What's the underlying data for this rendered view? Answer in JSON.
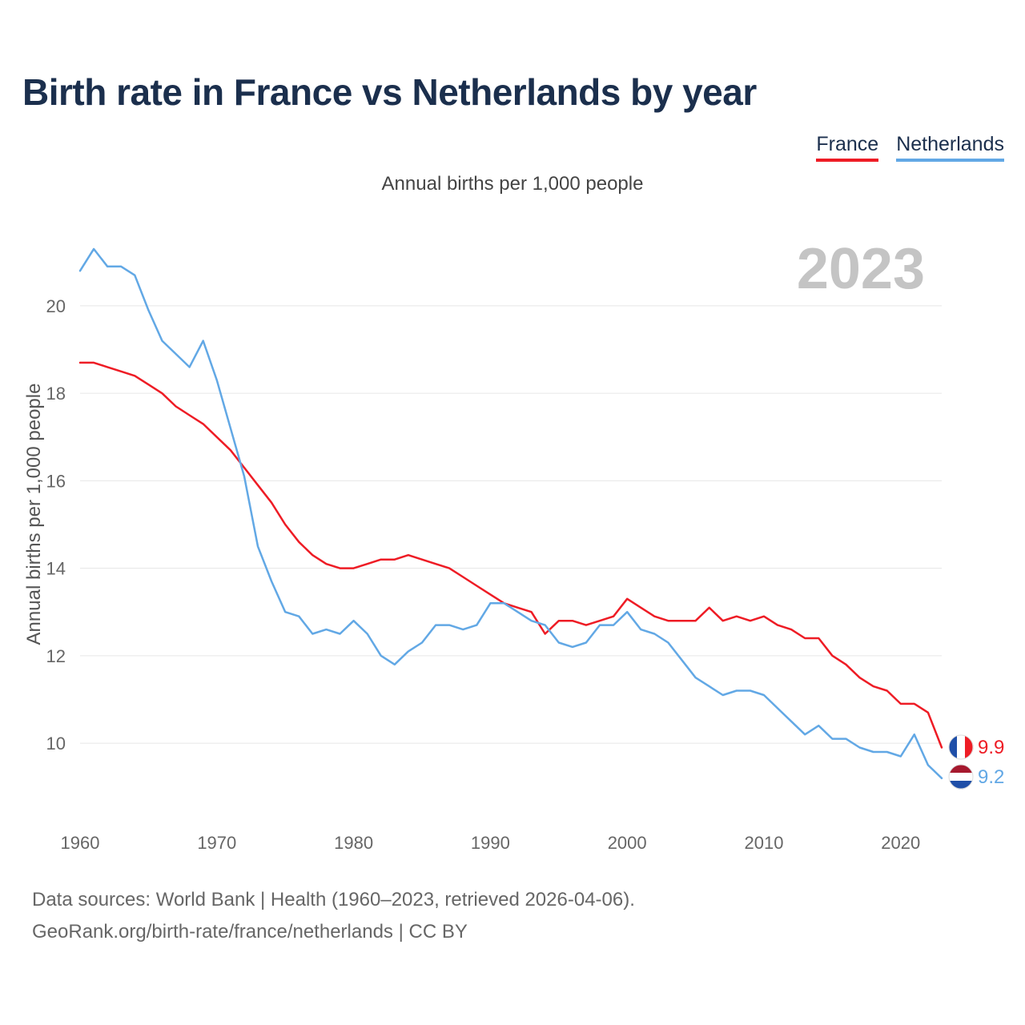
{
  "title": "Birth rate in France vs Netherlands by year",
  "subtitle": "Annual births per 1,000 people",
  "year_label": "2023",
  "footer": {
    "line1": "Data sources: World Bank | Health (1960–2023, retrieved 2026-04-06).",
    "line2": "GeoRank.org/birth-rate/france/netherlands | CC BY"
  },
  "chart_data": {
    "type": "line",
    "title": "Birth rate in France vs Netherlands by year",
    "ylabel": "Annual births per 1,000 people",
    "xlabel": "",
    "xlim": [
      1960,
      2023
    ],
    "ylim": [
      8.5,
      21.5
    ],
    "x_ticks": [
      1960,
      1970,
      1980,
      1990,
      2000,
      2010,
      2020
    ],
    "y_ticks": [
      10,
      12,
      14,
      16,
      18,
      20
    ],
    "grid": true,
    "legend_position": "top-right",
    "x": [
      1960,
      1961,
      1962,
      1963,
      1964,
      1965,
      1966,
      1967,
      1968,
      1969,
      1970,
      1971,
      1972,
      1973,
      1974,
      1975,
      1976,
      1977,
      1978,
      1979,
      1980,
      1981,
      1982,
      1983,
      1984,
      1985,
      1986,
      1987,
      1988,
      1989,
      1990,
      1991,
      1992,
      1993,
      1994,
      1995,
      1996,
      1997,
      1998,
      1999,
      2000,
      2001,
      2002,
      2003,
      2004,
      2005,
      2006,
      2007,
      2008,
      2009,
      2010,
      2011,
      2012,
      2013,
      2014,
      2015,
      2016,
      2017,
      2018,
      2019,
      2020,
      2021,
      2022,
      2023
    ],
    "series": [
      {
        "name": "France",
        "color": "#ee1c25",
        "end_label": "9.9",
        "values": [
          18.7,
          18.7,
          18.6,
          18.5,
          18.4,
          18.2,
          18.0,
          17.7,
          17.5,
          17.3,
          17.0,
          16.7,
          16.3,
          15.9,
          15.5,
          15.0,
          14.6,
          14.3,
          14.1,
          14.0,
          14.0,
          14.1,
          14.2,
          14.2,
          14.3,
          14.2,
          14.1,
          14.0,
          13.8,
          13.6,
          13.4,
          13.2,
          13.1,
          13.0,
          12.5,
          12.8,
          12.8,
          12.7,
          12.8,
          12.9,
          13.3,
          13.1,
          12.9,
          12.8,
          12.8,
          12.8,
          13.1,
          12.8,
          12.9,
          12.8,
          12.9,
          12.7,
          12.6,
          12.4,
          12.4,
          12.0,
          11.8,
          11.5,
          11.3,
          11.2,
          10.9,
          10.9,
          10.7,
          9.9
        ]
      },
      {
        "name": "Netherlands",
        "color": "#62a8e5",
        "end_label": "9.2",
        "values": [
          20.8,
          21.3,
          20.9,
          20.9,
          20.7,
          19.9,
          19.2,
          18.9,
          18.6,
          19.2,
          18.3,
          17.2,
          16.1,
          14.5,
          13.7,
          13.0,
          12.9,
          12.5,
          12.6,
          12.5,
          12.8,
          12.5,
          12.0,
          11.8,
          12.1,
          12.3,
          12.7,
          12.7,
          12.6,
          12.7,
          13.2,
          13.2,
          13.0,
          12.8,
          12.7,
          12.3,
          12.2,
          12.3,
          12.7,
          12.7,
          13.0,
          12.6,
          12.5,
          12.3,
          11.9,
          11.5,
          11.3,
          11.1,
          11.2,
          11.2,
          11.1,
          10.8,
          10.5,
          10.2,
          10.4,
          10.1,
          10.1,
          9.9,
          9.8,
          9.8,
          9.7,
          10.2,
          9.5,
          9.2
        ]
      }
    ]
  }
}
